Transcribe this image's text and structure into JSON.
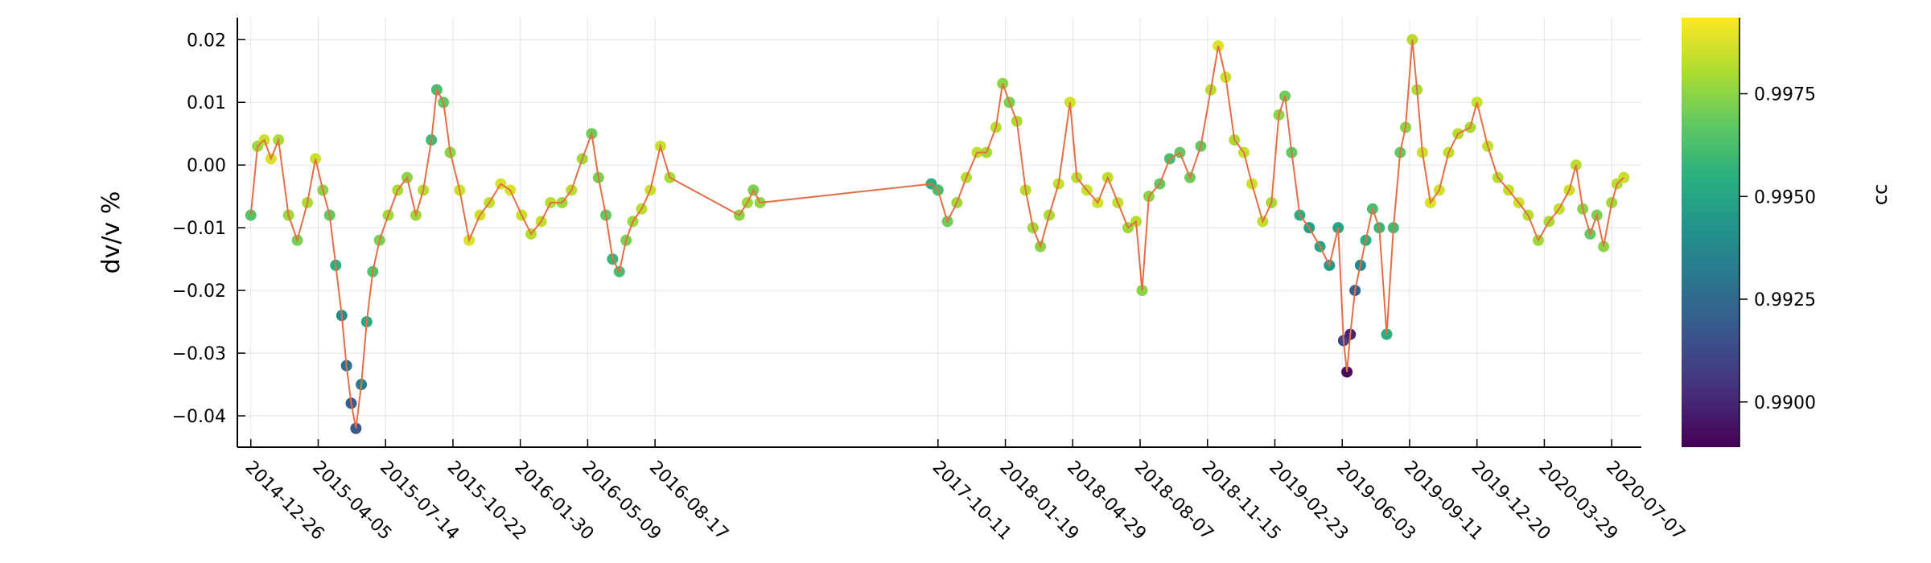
{
  "chart_data": {
    "type": "scatter",
    "title": "",
    "xlabel": "",
    "ylabel": "dv/v %",
    "ylim": [
      -0.045,
      0.0235
    ],
    "yticks": [
      -0.04,
      -0.03,
      -0.02,
      -0.01,
      0.0,
      0.01,
      0.02
    ],
    "ytick_labels": [
      "−0.04",
      "−0.03",
      "−0.02",
      "−0.01",
      "0.00",
      "0.01",
      "0.02"
    ],
    "xlim": [
      "2014-12-06",
      "2020-08-20"
    ],
    "xticks": [
      "2014-12-26",
      "2015-04-05",
      "2015-07-14",
      "2015-10-22",
      "2016-01-30",
      "2016-05-09",
      "2016-08-17",
      "2017-10-11",
      "2018-01-19",
      "2018-04-29",
      "2018-08-07",
      "2018-11-15",
      "2019-02-23",
      "2019-06-03",
      "2019-09-11",
      "2019-12-20",
      "2020-03-29",
      "2020-07-07"
    ],
    "grid": true,
    "line_color": "#e26f46",
    "colorscale": "viridis",
    "colorbar": {
      "label": "cc",
      "range": [
        0.9889,
        0.99935
      ],
      "ticks": [
        0.99,
        0.9925,
        0.995,
        0.9975
      ],
      "tick_labels": [
        "0.9900",
        "0.9925",
        "0.9950",
        "0.9975"
      ]
    },
    "series": [
      {
        "points": [
          {
            "x": "2014-12-26",
            "y": -0.008,
            "cc": 0.9965
          },
          {
            "x": "2015-01-05",
            "y": 0.003,
            "cc": 0.9978
          },
          {
            "x": "2015-01-15",
            "y": 0.004,
            "cc": 0.9985
          },
          {
            "x": "2015-01-25",
            "y": 0.001,
            "cc": 0.9988
          },
          {
            "x": "2015-02-05",
            "y": 0.004,
            "cc": 0.998
          },
          {
            "x": "2015-02-20",
            "y": -0.008,
            "cc": 0.9978
          },
          {
            "x": "2015-03-05",
            "y": -0.012,
            "cc": 0.9972
          },
          {
            "x": "2015-03-20",
            "y": -0.006,
            "cc": 0.998
          },
          {
            "x": "2015-04-01",
            "y": 0.001,
            "cc": 0.9985
          },
          {
            "x": "2015-04-12",
            "y": -0.004,
            "cc": 0.9975
          },
          {
            "x": "2015-04-22",
            "y": -0.008,
            "cc": 0.9968
          },
          {
            "x": "2015-05-01",
            "y": -0.016,
            "cc": 0.9955
          },
          {
            "x": "2015-05-10",
            "y": -0.024,
            "cc": 0.994
          },
          {
            "x": "2015-05-17",
            "y": -0.032,
            "cc": 0.9928
          },
          {
            "x": "2015-05-24",
            "y": -0.038,
            "cc": 0.992
          },
          {
            "x": "2015-05-31",
            "y": -0.042,
            "cc": 0.9918
          },
          {
            "x": "2015-06-08",
            "y": -0.035,
            "cc": 0.9932
          },
          {
            "x": "2015-06-16",
            "y": -0.025,
            "cc": 0.9952
          },
          {
            "x": "2015-06-25",
            "y": -0.017,
            "cc": 0.9965
          },
          {
            "x": "2015-07-05",
            "y": -0.012,
            "cc": 0.9972
          },
          {
            "x": "2015-07-18",
            "y": -0.008,
            "cc": 0.9978
          },
          {
            "x": "2015-08-01",
            "y": -0.004,
            "cc": 0.998
          },
          {
            "x": "2015-08-15",
            "y": -0.002,
            "cc": 0.9975
          },
          {
            "x": "2015-08-28",
            "y": -0.008,
            "cc": 0.9978
          },
          {
            "x": "2015-09-08",
            "y": -0.004,
            "cc": 0.9982
          },
          {
            "x": "2015-09-20",
            "y": 0.004,
            "cc": 0.996
          },
          {
            "x": "2015-09-28",
            "y": 0.012,
            "cc": 0.9962
          },
          {
            "x": "2015-10-08",
            "y": 0.01,
            "cc": 0.9968
          },
          {
            "x": "2015-10-18",
            "y": 0.002,
            "cc": 0.9975
          },
          {
            "x": "2015-11-01",
            "y": -0.004,
            "cc": 0.9985
          },
          {
            "x": "2015-11-15",
            "y": -0.012,
            "cc": 0.9988
          },
          {
            "x": "2015-12-01",
            "y": -0.008,
            "cc": 0.9986
          },
          {
            "x": "2015-12-15",
            "y": -0.006,
            "cc": 0.9984
          },
          {
            "x": "2016-01-01",
            "y": -0.003,
            "cc": 0.9987
          },
          {
            "x": "2016-01-15",
            "y": -0.004,
            "cc": 0.9988
          },
          {
            "x": "2016-02-01",
            "y": -0.008,
            "cc": 0.9985
          },
          {
            "x": "2016-02-15",
            "y": -0.011,
            "cc": 0.9982
          },
          {
            "x": "2016-03-01",
            "y": -0.009,
            "cc": 0.9984
          },
          {
            "x": "2016-03-15",
            "y": -0.006,
            "cc": 0.9982
          },
          {
            "x": "2016-04-01",
            "y": -0.006,
            "cc": 0.9978
          },
          {
            "x": "2016-04-15",
            "y": -0.004,
            "cc": 0.9982
          },
          {
            "x": "2016-05-01",
            "y": 0.001,
            "cc": 0.9978
          },
          {
            "x": "2016-05-15",
            "y": 0.005,
            "cc": 0.997
          },
          {
            "x": "2016-05-25",
            "y": -0.002,
            "cc": 0.9972
          },
          {
            "x": "2016-06-05",
            "y": -0.008,
            "cc": 0.9968
          },
          {
            "x": "2016-06-15",
            "y": -0.015,
            "cc": 0.9958
          },
          {
            "x": "2016-06-25",
            "y": -0.017,
            "cc": 0.9962
          },
          {
            "x": "2016-07-05",
            "y": -0.012,
            "cc": 0.9972
          },
          {
            "x": "2016-07-15",
            "y": -0.009,
            "cc": 0.9978
          },
          {
            "x": "2016-07-28",
            "y": -0.007,
            "cc": 0.9982
          },
          {
            "x": "2016-08-10",
            "y": -0.004,
            "cc": 0.9985
          },
          {
            "x": "2016-08-25",
            "y": 0.003,
            "cc": 0.9985
          },
          {
            "x": "2016-09-08",
            "y": -0.002,
            "cc": 0.998
          },
          {
            "x": "2016-12-20",
            "y": -0.008,
            "cc": 0.9975
          },
          {
            "x": "2017-01-01",
            "y": -0.006,
            "cc": 0.9978
          },
          {
            "x": "2017-01-10",
            "y": -0.004,
            "cc": 0.9972
          },
          {
            "x": "2017-01-20",
            "y": -0.006,
            "cc": 0.9976
          },
          {
            "x": "2017-10-01",
            "y": -0.003,
            "cc": 0.9955
          },
          {
            "x": "2017-10-11",
            "y": -0.004,
            "cc": 0.9962
          },
          {
            "x": "2017-10-25",
            "y": -0.009,
            "cc": 0.997
          },
          {
            "x": "2017-11-08",
            "y": -0.006,
            "cc": 0.9978
          },
          {
            "x": "2017-11-22",
            "y": -0.002,
            "cc": 0.9982
          },
          {
            "x": "2017-12-08",
            "y": 0.002,
            "cc": 0.9984
          },
          {
            "x": "2017-12-22",
            "y": 0.002,
            "cc": 0.998
          },
          {
            "x": "2018-01-05",
            "y": 0.006,
            "cc": 0.9982
          },
          {
            "x": "2018-01-15",
            "y": 0.013,
            "cc": 0.9975
          },
          {
            "x": "2018-01-25",
            "y": 0.01,
            "cc": 0.9972
          },
          {
            "x": "2018-02-05",
            "y": 0.007,
            "cc": 0.998
          },
          {
            "x": "2018-02-18",
            "y": -0.004,
            "cc": 0.9982
          },
          {
            "x": "2018-03-01",
            "y": -0.01,
            "cc": 0.9978
          },
          {
            "x": "2018-03-12",
            "y": -0.013,
            "cc": 0.9975
          },
          {
            "x": "2018-03-25",
            "y": -0.008,
            "cc": 0.998
          },
          {
            "x": "2018-04-08",
            "y": -0.003,
            "cc": 0.9984
          },
          {
            "x": "2018-04-25",
            "y": 0.01,
            "cc": 0.9986
          },
          {
            "x": "2018-05-05",
            "y": -0.002,
            "cc": 0.9982
          },
          {
            "x": "2018-05-20",
            "y": -0.004,
            "cc": 0.9985
          },
          {
            "x": "2018-06-05",
            "y": -0.006,
            "cc": 0.9986
          },
          {
            "x": "2018-06-20",
            "y": -0.002,
            "cc": 0.9984
          },
          {
            "x": "2018-07-05",
            "y": -0.006,
            "cc": 0.9984
          },
          {
            "x": "2018-07-20",
            "y": -0.01,
            "cc": 0.9978
          },
          {
            "x": "2018-08-01",
            "y": -0.009,
            "cc": 0.9982
          },
          {
            "x": "2018-08-10",
            "y": -0.02,
            "cc": 0.9975
          },
          {
            "x": "2018-08-20",
            "y": -0.005,
            "cc": 0.9975
          },
          {
            "x": "2018-09-05",
            "y": -0.003,
            "cc": 0.9968
          },
          {
            "x": "2018-09-20",
            "y": 0.001,
            "cc": 0.9962
          },
          {
            "x": "2018-10-05",
            "y": 0.002,
            "cc": 0.9968
          },
          {
            "x": "2018-10-20",
            "y": -0.002,
            "cc": 0.997
          },
          {
            "x": "2018-11-05",
            "y": 0.003,
            "cc": 0.9968
          },
          {
            "x": "2018-11-20",
            "y": 0.012,
            "cc": 0.9982
          },
          {
            "x": "2018-12-01",
            "y": 0.019,
            "cc": 0.9988
          },
          {
            "x": "2018-12-12",
            "y": 0.014,
            "cc": 0.9985
          },
          {
            "x": "2018-12-25",
            "y": 0.004,
            "cc": 0.998
          },
          {
            "x": "2019-01-08",
            "y": 0.002,
            "cc": 0.9985
          },
          {
            "x": "2019-01-20",
            "y": -0.003,
            "cc": 0.9986
          },
          {
            "x": "2019-02-05",
            "y": -0.009,
            "cc": 0.9984
          },
          {
            "x": "2019-02-18",
            "y": -0.006,
            "cc": 0.998
          },
          {
            "x": "2019-03-01",
            "y": 0.008,
            "cc": 0.9975
          },
          {
            "x": "2019-03-10",
            "y": 0.011,
            "cc": 0.997
          },
          {
            "x": "2019-03-20",
            "y": 0.002,
            "cc": 0.9968
          },
          {
            "x": "2019-04-01",
            "y": -0.008,
            "cc": 0.9955
          },
          {
            "x": "2019-04-15",
            "y": -0.01,
            "cc": 0.9948
          },
          {
            "x": "2019-05-01",
            "y": -0.013,
            "cc": 0.995
          },
          {
            "x": "2019-05-15",
            "y": -0.016,
            "cc": 0.9945
          },
          {
            "x": "2019-05-28",
            "y": -0.01,
            "cc": 0.995
          },
          {
            "x": "2019-06-05",
            "y": -0.028,
            "cc": 0.991
          },
          {
            "x": "2019-06-10",
            "y": -0.033,
            "cc": 0.9892
          },
          {
            "x": "2019-06-15",
            "y": -0.027,
            "cc": 0.99
          },
          {
            "x": "2019-06-22",
            "y": -0.02,
            "cc": 0.9922
          },
          {
            "x": "2019-06-30",
            "y": -0.016,
            "cc": 0.9938
          },
          {
            "x": "2019-07-08",
            "y": -0.012,
            "cc": 0.9955
          },
          {
            "x": "2019-07-18",
            "y": -0.007,
            "cc": 0.9962
          },
          {
            "x": "2019-07-28",
            "y": -0.01,
            "cc": 0.9958
          },
          {
            "x": "2019-08-08",
            "y": -0.027,
            "cc": 0.9955
          },
          {
            "x": "2019-08-18",
            "y": -0.01,
            "cc": 0.996
          },
          {
            "x": "2019-08-28",
            "y": 0.002,
            "cc": 0.9968
          },
          {
            "x": "2019-09-05",
            "y": 0.006,
            "cc": 0.9975
          },
          {
            "x": "2019-09-15",
            "y": 0.02,
            "cc": 0.9982
          },
          {
            "x": "2019-09-22",
            "y": 0.012,
            "cc": 0.998
          },
          {
            "x": "2019-09-30",
            "y": 0.002,
            "cc": 0.9985
          },
          {
            "x": "2019-10-12",
            "y": -0.006,
            "cc": 0.9988
          },
          {
            "x": "2019-10-25",
            "y": -0.004,
            "cc": 0.9986
          },
          {
            "x": "2019-11-08",
            "y": 0.002,
            "cc": 0.9984
          },
          {
            "x": "2019-11-22",
            "y": 0.005,
            "cc": 0.9982
          },
          {
            "x": "2019-12-10",
            "y": 0.006,
            "cc": 0.998
          },
          {
            "x": "2019-12-20",
            "y": 0.01,
            "cc": 0.9985
          },
          {
            "x": "2020-01-05",
            "y": 0.003,
            "cc": 0.9984
          },
          {
            "x": "2020-01-20",
            "y": -0.002,
            "cc": 0.9982
          },
          {
            "x": "2020-02-05",
            "y": -0.004,
            "cc": 0.9984
          },
          {
            "x": "2020-02-20",
            "y": -0.006,
            "cc": 0.9986
          },
          {
            "x": "2020-03-05",
            "y": -0.008,
            "cc": 0.9982
          },
          {
            "x": "2020-03-20",
            "y": -0.012,
            "cc": 0.9978
          },
          {
            "x": "2020-04-05",
            "y": -0.009,
            "cc": 0.998
          },
          {
            "x": "2020-04-20",
            "y": -0.007,
            "cc": 0.9984
          },
          {
            "x": "2020-05-05",
            "y": -0.004,
            "cc": 0.9985
          },
          {
            "x": "2020-05-15",
            "y": 0.0,
            "cc": 0.9982
          },
          {
            "x": "2020-05-25",
            "y": -0.007,
            "cc": 0.9975
          },
          {
            "x": "2020-06-05",
            "y": -0.011,
            "cc": 0.9968
          },
          {
            "x": "2020-06-15",
            "y": -0.008,
            "cc": 0.9972
          },
          {
            "x": "2020-06-25",
            "y": -0.013,
            "cc": 0.9975
          },
          {
            "x": "2020-07-07",
            "y": -0.006,
            "cc": 0.9978
          },
          {
            "x": "2020-07-15",
            "y": -0.003,
            "cc": 0.9982
          },
          {
            "x": "2020-07-25",
            "y": -0.002,
            "cc": 0.9985
          }
        ]
      }
    ]
  }
}
